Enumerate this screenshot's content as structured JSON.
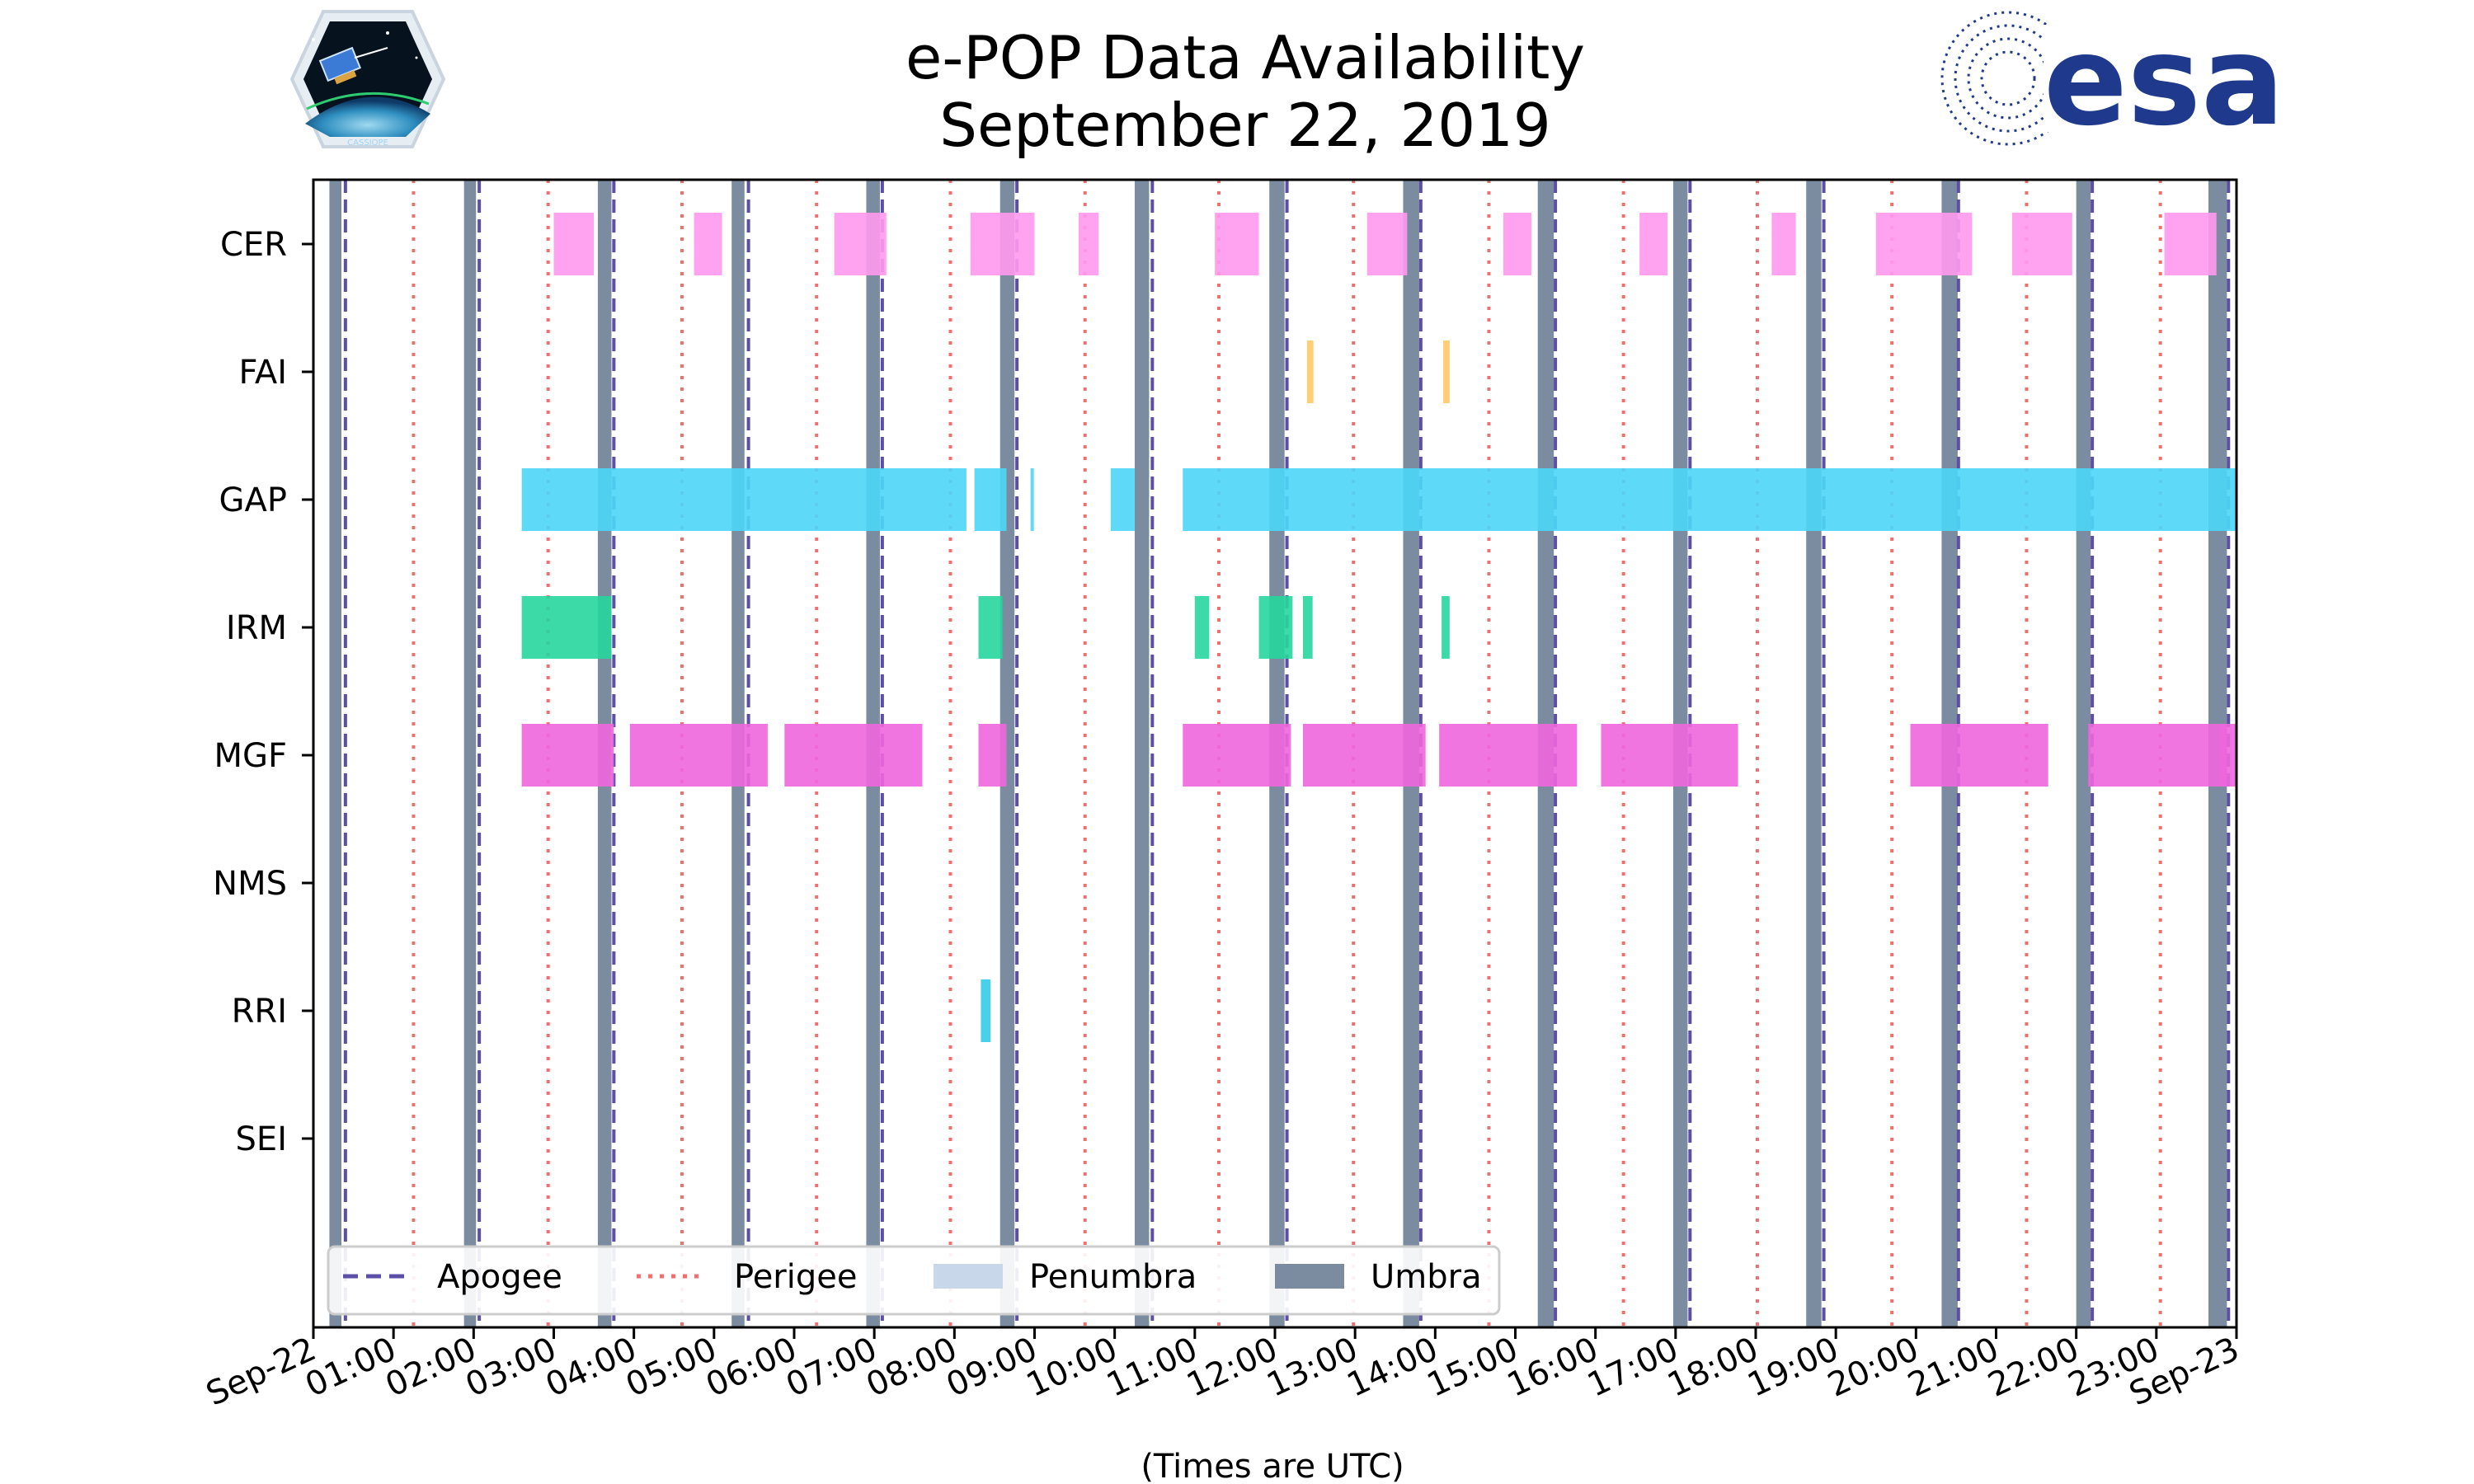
{
  "chart_data": {
    "type": "timeline",
    "title": "e-POP Data Availability",
    "subtitle": "September 22, 2019",
    "xlabel": "(Times are UTC)",
    "x_unit": "hours UTC",
    "xlim": [
      0,
      24
    ],
    "x_ticks": [
      {
        "value": 0,
        "label": "Sep-22"
      },
      {
        "value": 1,
        "label": "01:00"
      },
      {
        "value": 2,
        "label": "02:00"
      },
      {
        "value": 3,
        "label": "03:00"
      },
      {
        "value": 4,
        "label": "04:00"
      },
      {
        "value": 5,
        "label": "05:00"
      },
      {
        "value": 6,
        "label": "06:00"
      },
      {
        "value": 7,
        "label": "07:00"
      },
      {
        "value": 8,
        "label": "08:00"
      },
      {
        "value": 9,
        "label": "09:00"
      },
      {
        "value": 10,
        "label": "10:00"
      },
      {
        "value": 11,
        "label": "11:00"
      },
      {
        "value": 12,
        "label": "12:00"
      },
      {
        "value": 13,
        "label": "13:00"
      },
      {
        "value": 14,
        "label": "14:00"
      },
      {
        "value": 15,
        "label": "15:00"
      },
      {
        "value": 16,
        "label": "16:00"
      },
      {
        "value": 17,
        "label": "17:00"
      },
      {
        "value": 18,
        "label": "18:00"
      },
      {
        "value": 19,
        "label": "19:00"
      },
      {
        "value": 20,
        "label": "20:00"
      },
      {
        "value": 21,
        "label": "21:00"
      },
      {
        "value": 22,
        "label": "22:00"
      },
      {
        "value": 23,
        "label": "23:00"
      },
      {
        "value": 24,
        "label": "Sep-23"
      }
    ],
    "instruments": [
      "CER",
      "FAI",
      "GAP",
      "IRM",
      "MGF",
      "NMS",
      "RRI",
      "SEI"
    ],
    "series": [
      {
        "name": "CER",
        "color": "#ff99ee",
        "intervals": [
          [
            3.0,
            3.5
          ],
          [
            4.75,
            5.1
          ],
          [
            6.5,
            7.15
          ],
          [
            8.2,
            9.0
          ],
          [
            9.55,
            9.8
          ],
          [
            11.25,
            11.8
          ],
          [
            13.15,
            13.65
          ],
          [
            14.85,
            15.2
          ],
          [
            16.55,
            16.9
          ],
          [
            18.2,
            18.5
          ],
          [
            19.5,
            20.7
          ],
          [
            21.2,
            21.95
          ],
          [
            23.1,
            23.75
          ]
        ]
      },
      {
        "name": "FAI",
        "color": "#ffc966",
        "intervals": [
          [
            12.4,
            12.48
          ],
          [
            14.1,
            14.18
          ]
        ]
      },
      {
        "name": "GAP",
        "color": "#4dd6f7",
        "intervals": [
          [
            2.6,
            8.15
          ],
          [
            8.25,
            8.65
          ],
          [
            8.95,
            8.98
          ],
          [
            9.95,
            10.25
          ],
          [
            10.85,
            24.0
          ]
        ]
      },
      {
        "name": "IRM",
        "color": "#26d69c",
        "intervals": [
          [
            2.6,
            3.72
          ],
          [
            8.3,
            8.6
          ],
          [
            11.0,
            11.18
          ],
          [
            11.8,
            12.22
          ],
          [
            12.35,
            12.47
          ],
          [
            14.08,
            14.18
          ]
        ]
      },
      {
        "name": "MGF",
        "color": "#ee66dd",
        "intervals": [
          [
            2.6,
            3.75
          ],
          [
            3.95,
            5.67
          ],
          [
            5.88,
            7.6
          ],
          [
            8.3,
            8.65
          ],
          [
            10.85,
            12.2
          ],
          [
            12.35,
            13.88
          ],
          [
            14.05,
            15.77
          ],
          [
            16.07,
            17.78
          ],
          [
            19.93,
            21.65
          ],
          [
            22.15,
            23.87
          ],
          [
            23.8,
            24.0
          ]
        ]
      },
      {
        "name": "NMS",
        "color": "#000000",
        "intervals": []
      },
      {
        "name": "RRI",
        "color": "#33cceb",
        "intervals": [
          [
            8.33,
            8.45
          ]
        ]
      },
      {
        "name": "SEI",
        "color": "#000000",
        "intervals": []
      }
    ],
    "apogee": [
      0.4,
      2.07,
      3.75,
      5.43,
      7.1,
      8.78,
      10.47,
      12.15,
      13.82,
      15.5,
      17.18,
      18.85,
      20.53,
      22.2,
      23.9
    ],
    "perigee": [
      1.25,
      2.93,
      4.6,
      6.28,
      7.95,
      9.63,
      11.3,
      12.98,
      14.67,
      16.35,
      18.02,
      19.7,
      21.38,
      23.05
    ],
    "umbra": [
      [
        0.2,
        0.35
      ],
      [
        1.88,
        2.03
      ],
      [
        3.55,
        3.72
      ],
      [
        5.22,
        5.38
      ],
      [
        6.9,
        7.07
      ],
      [
        8.57,
        8.75
      ],
      [
        10.25,
        10.43
      ],
      [
        11.93,
        12.12
      ],
      [
        13.6,
        13.8
      ],
      [
        15.28,
        15.48
      ],
      [
        16.97,
        17.15
      ],
      [
        18.63,
        18.82
      ],
      [
        20.32,
        20.52
      ],
      [
        22.0,
        22.18
      ],
      [
        23.65,
        23.88
      ]
    ],
    "penumbra": [],
    "legend": {
      "position": "bottom",
      "entries": [
        {
          "label": "Apogee",
          "style": "dashed",
          "color": "#5b4fa8"
        },
        {
          "label": "Perigee",
          "style": "dotted",
          "color": "#f07070"
        },
        {
          "label": "Penumbra",
          "style": "patch",
          "color": "#c8d8ea"
        },
        {
          "label": "Umbra",
          "style": "patch",
          "color": "#7b8ca0"
        }
      ]
    }
  }
}
